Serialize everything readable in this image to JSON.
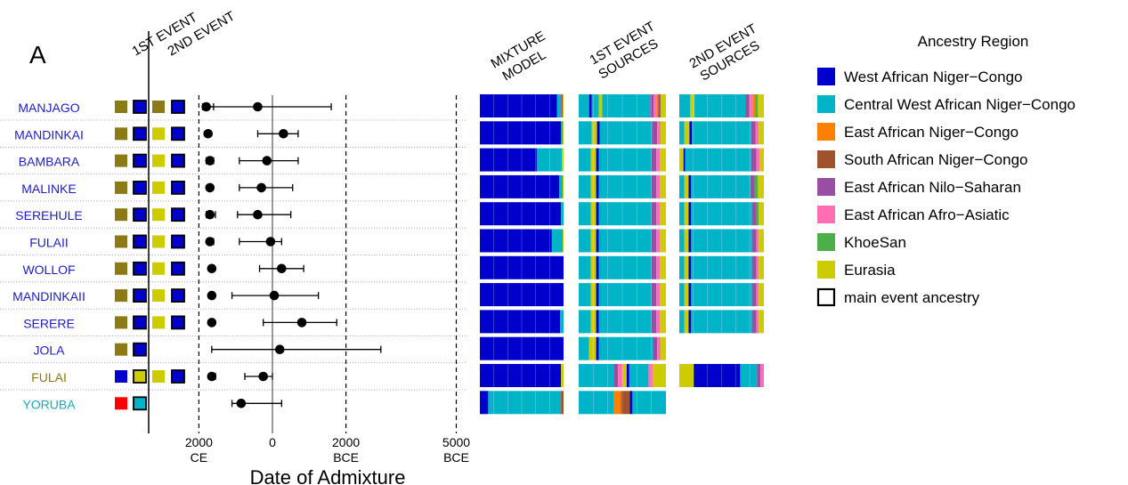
{
  "panel_label": "A",
  "event_headers": [
    "1ST EVENT",
    "2ND EVENT"
  ],
  "bar_headers": [
    [
      "MIXTURE",
      "MODEL"
    ],
    [
      "1ST EVENT",
      "SOURCES"
    ],
    [
      "2ND EVENT",
      "SOURCES"
    ]
  ],
  "legend": {
    "title": "Ancestry Region",
    "items": [
      {
        "label": "West African Niger−Congo",
        "color": "#0000cd"
      },
      {
        "label": "Central West African Niger−Congo",
        "color": "#00b4c8"
      },
      {
        "label": "East African Niger−Congo",
        "color": "#ff8000"
      },
      {
        "label": "South African Niger−Congo",
        "color": "#a0522d"
      },
      {
        "label": "East African Nilo−Saharan",
        "color": "#984ea3"
      },
      {
        "label": "East African Afro−Asiatic",
        "color": "#ff6eb4"
      },
      {
        "label": "KhoeSan",
        "color": "#4daf4a"
      },
      {
        "label": "Eurasia",
        "color": "#cccc00"
      }
    ],
    "outline_item": "main event ancestry"
  },
  "chart_data": {
    "type": "scatter",
    "xlabel": "Date of Admixture",
    "ticks": [
      {
        "value": -2000,
        "line1": "2000",
        "line2": "CE"
      },
      {
        "value": 0,
        "line1": "0",
        "line2": ""
      },
      {
        "value": 2000,
        "line1": "2000",
        "line2": "BCE"
      },
      {
        "value": 5000,
        "line1": "5000",
        "line2": "BCE"
      }
    ],
    "xlim": [
      -2200,
      5300
    ],
    "dashed_at": [
      -2000,
      2000,
      5000
    ],
    "solid_at": [
      0
    ],
    "ancestry_colors": {
      "WA": "#0000cd",
      "CWA": "#00b4c8",
      "EANC": "#ff8000",
      "SANC": "#a0522d",
      "NS": "#984ea3",
      "AA": "#ff6eb4",
      "KS": "#4daf4a",
      "EU": "#cccc00",
      "OLIVE": "#8b7a16",
      "RED": "#ff0000"
    },
    "populations": [
      {
        "name": "MANJAGO",
        "label_color": "#1c1ccc",
        "e1": [
          "OLIVE",
          "WA"
        ],
        "e2": [
          "OLIVE",
          "WA"
        ],
        "main1": 1,
        "main2": 1,
        "d1": {
          "date": -1800,
          "lo": -1900,
          "hi": -1600
        },
        "d2": {
          "date": -400,
          "lo": -1800,
          "hi": 1600
        },
        "mix": [
          [
            "WA",
            0.92
          ],
          [
            "CWA",
            0.05
          ],
          [
            "NS",
            0.02
          ],
          [
            "EU",
            0.01
          ]
        ],
        "s1": [
          [
            "CWA",
            0.12
          ],
          [
            "WA",
            0.03
          ],
          [
            "CWA",
            0.08
          ],
          [
            "EU",
            0.04
          ],
          [
            "CWA",
            0.55
          ],
          [
            "NS",
            0.04
          ],
          [
            "AA",
            0.03
          ],
          [
            "EANC",
            0.02
          ],
          [
            "NS",
            0.03
          ],
          [
            "EU",
            0.06
          ]
        ],
        "s2": [
          [
            "CWA",
            0.13
          ],
          [
            "EU",
            0.05
          ],
          [
            "CWA",
            0.6
          ],
          [
            "NS",
            0.05
          ],
          [
            "AA",
            0.04
          ],
          [
            "EANC",
            0.03
          ],
          [
            "KS",
            0.03
          ],
          [
            "EU",
            0.07
          ]
        ]
      },
      {
        "name": "MANDINKAI",
        "label_color": "#1c1ccc",
        "e1": [
          "OLIVE",
          "WA"
        ],
        "e2": [
          "EU",
          "WA"
        ],
        "main1": 1,
        "main2": 1,
        "d1": {
          "date": -1750,
          "lo": -1750,
          "hi": -1750
        },
        "d2": {
          "date": 300,
          "lo": -400,
          "hi": 700
        },
        "mix": [
          [
            "WA",
            0.97
          ],
          [
            "CWA",
            0.02
          ],
          [
            "EU",
            0.01
          ]
        ],
        "s1": [
          [
            "CWA",
            0.15
          ],
          [
            "EU",
            0.06
          ],
          [
            "WA",
            0.03
          ],
          [
            "CWA",
            0.6
          ],
          [
            "NS",
            0.06
          ],
          [
            "AA",
            0.04
          ],
          [
            "EU",
            0.06
          ]
        ],
        "s2": [
          [
            "CWA",
            0.06
          ],
          [
            "EU",
            0.06
          ],
          [
            "WA",
            0.03
          ],
          [
            "CWA",
            0.7
          ],
          [
            "NS",
            0.05
          ],
          [
            "AA",
            0.04
          ],
          [
            "EU",
            0.06
          ]
        ]
      },
      {
        "name": "BAMBARA",
        "label_color": "#1c1ccc",
        "e1": [
          "OLIVE",
          "WA"
        ],
        "e2": [
          "EU",
          "WA"
        ],
        "main1": 1,
        "main2": 1,
        "d1": {
          "date": -1700,
          "lo": -1800,
          "hi": -1600
        },
        "d2": {
          "date": -150,
          "lo": -900,
          "hi": 700
        },
        "mix": [
          [
            "WA",
            0.68
          ],
          [
            "CWA",
            0.3
          ],
          [
            "EU",
            0.02
          ]
        ],
        "s1": [
          [
            "CWA",
            0.14
          ],
          [
            "EU",
            0.06
          ],
          [
            "WA",
            0.03
          ],
          [
            "CWA",
            0.6
          ],
          [
            "NS",
            0.06
          ],
          [
            "AA",
            0.04
          ],
          [
            "EU",
            0.07
          ]
        ],
        "s2": [
          [
            "EU",
            0.05
          ],
          [
            "WA",
            0.02
          ],
          [
            "CWA",
            0.78
          ],
          [
            "NS",
            0.06
          ],
          [
            "AA",
            0.04
          ],
          [
            "EU",
            0.05
          ]
        ]
      },
      {
        "name": "MALINKE",
        "label_color": "#1c1ccc",
        "e1": [
          "OLIVE",
          "WA"
        ],
        "e2": [
          "EU",
          "WA"
        ],
        "main1": 1,
        "main2": 1,
        "d1": {
          "date": -1700,
          "lo": -1700,
          "hi": -1700
        },
        "d2": {
          "date": -300,
          "lo": -900,
          "hi": 550
        },
        "mix": [
          [
            "WA",
            0.95
          ],
          [
            "CWA",
            0.04
          ],
          [
            "EU",
            0.01
          ]
        ],
        "s1": [
          [
            "CWA",
            0.14
          ],
          [
            "EU",
            0.06
          ],
          [
            "WA",
            0.03
          ],
          [
            "CWA",
            0.6
          ],
          [
            "NS",
            0.06
          ],
          [
            "AA",
            0.04
          ],
          [
            "EU",
            0.07
          ]
        ],
        "s2": [
          [
            "CWA",
            0.06
          ],
          [
            "EU",
            0.05
          ],
          [
            "WA",
            0.03
          ],
          [
            "CWA",
            0.7
          ],
          [
            "NS",
            0.05
          ],
          [
            "KS",
            0.04
          ],
          [
            "EU",
            0.07
          ]
        ]
      },
      {
        "name": "SEREHULE",
        "label_color": "#1c1ccc",
        "e1": [
          "OLIVE",
          "WA"
        ],
        "e2": [
          "EU",
          "WA"
        ],
        "main1": 1,
        "main2": 1,
        "d1": {
          "date": -1700,
          "lo": -1800,
          "hi": -1550
        },
        "d2": {
          "date": -400,
          "lo": -950,
          "hi": 500
        },
        "mix": [
          [
            "WA",
            0.97
          ],
          [
            "CWA",
            0.03
          ]
        ],
        "s1": [
          [
            "CWA",
            0.14
          ],
          [
            "EU",
            0.06
          ],
          [
            "WA",
            0.03
          ],
          [
            "CWA",
            0.6
          ],
          [
            "NS",
            0.06
          ],
          [
            "AA",
            0.04
          ],
          [
            "EU",
            0.07
          ]
        ],
        "s2": [
          [
            "CWA",
            0.06
          ],
          [
            "EU",
            0.05
          ],
          [
            "WA",
            0.03
          ],
          [
            "CWA",
            0.72
          ],
          [
            "NS",
            0.05
          ],
          [
            "KS",
            0.03
          ],
          [
            "EU",
            0.06
          ]
        ]
      },
      {
        "name": "FULAII",
        "label_color": "#1c1ccc",
        "e1": [
          "OLIVE",
          "WA"
        ],
        "e2": [
          "EU",
          "WA"
        ],
        "main1": 1,
        "main2": 1,
        "d1": {
          "date": -1700,
          "lo": -1750,
          "hi": -1600
        },
        "d2": {
          "date": -50,
          "lo": -900,
          "hi": 250
        },
        "mix": [
          [
            "WA",
            0.86
          ],
          [
            "CWA",
            0.13
          ],
          [
            "EU",
            0.01
          ]
        ],
        "s1": [
          [
            "CWA",
            0.14
          ],
          [
            "EU",
            0.06
          ],
          [
            "WA",
            0.03
          ],
          [
            "CWA",
            0.6
          ],
          [
            "NS",
            0.06
          ],
          [
            "AA",
            0.04
          ],
          [
            "EU",
            0.07
          ]
        ],
        "s2": [
          [
            "CWA",
            0.06
          ],
          [
            "EU",
            0.05
          ],
          [
            "WA",
            0.03
          ],
          [
            "CWA",
            0.72
          ],
          [
            "NS",
            0.05
          ],
          [
            "AA",
            0.03
          ],
          [
            "EU",
            0.06
          ]
        ]
      },
      {
        "name": "WOLLOF",
        "label_color": "#1c1ccc",
        "e1": [
          "OLIVE",
          "WA"
        ],
        "e2": [
          "EU",
          "WA"
        ],
        "main1": 1,
        "main2": 1,
        "d1": {
          "date": -1650,
          "lo": -1650,
          "hi": -1650
        },
        "d2": {
          "date": 250,
          "lo": -350,
          "hi": 850
        },
        "mix": [
          [
            "WA",
            1.0
          ]
        ],
        "s1": [
          [
            "CWA",
            0.14
          ],
          [
            "EU",
            0.06
          ],
          [
            "WA",
            0.03
          ],
          [
            "CWA",
            0.6
          ],
          [
            "NS",
            0.06
          ],
          [
            "AA",
            0.04
          ],
          [
            "EU",
            0.07
          ]
        ],
        "s2": [
          [
            "CWA",
            0.06
          ],
          [
            "EU",
            0.05
          ],
          [
            "WA",
            0.03
          ],
          [
            "CWA",
            0.72
          ],
          [
            "NS",
            0.05
          ],
          [
            "AA",
            0.03
          ],
          [
            "EU",
            0.06
          ]
        ]
      },
      {
        "name": "MANDINKAII",
        "label_color": "#1c1ccc",
        "e1": [
          "OLIVE",
          "WA"
        ],
        "e2": [
          "EU",
          "WA"
        ],
        "main1": 1,
        "main2": 1,
        "d1": {
          "date": -1650,
          "lo": -1700,
          "hi": -1600
        },
        "d2": {
          "date": 50,
          "lo": -1100,
          "hi": 1250
        },
        "mix": [
          [
            "WA",
            1.0
          ]
        ],
        "s1": [
          [
            "CWA",
            0.14
          ],
          [
            "EU",
            0.06
          ],
          [
            "WA",
            0.03
          ],
          [
            "CWA",
            0.6
          ],
          [
            "NS",
            0.06
          ],
          [
            "AA",
            0.04
          ],
          [
            "EU",
            0.07
          ]
        ],
        "s2": [
          [
            "CWA",
            0.06
          ],
          [
            "EU",
            0.05
          ],
          [
            "WA",
            0.03
          ],
          [
            "CWA",
            0.72
          ],
          [
            "NS",
            0.05
          ],
          [
            "AA",
            0.03
          ],
          [
            "EU",
            0.06
          ]
        ]
      },
      {
        "name": "SERERE",
        "label_color": "#1c1ccc",
        "e1": [
          "OLIVE",
          "WA"
        ],
        "e2": [
          "EU",
          "WA"
        ],
        "main1": 1,
        "main2": 1,
        "d1": {
          "date": -1650,
          "lo": -1700,
          "hi": -1600
        },
        "d2": {
          "date": 800,
          "lo": -250,
          "hi": 1750
        },
        "mix": [
          [
            "WA",
            0.96
          ],
          [
            "CWA",
            0.04
          ]
        ],
        "s1": [
          [
            "CWA",
            0.14
          ],
          [
            "EU",
            0.06
          ],
          [
            "WA",
            0.03
          ],
          [
            "CWA",
            0.6
          ],
          [
            "NS",
            0.06
          ],
          [
            "AA",
            0.04
          ],
          [
            "EU",
            0.07
          ]
        ],
        "s2": [
          [
            "CWA",
            0.06
          ],
          [
            "EU",
            0.05
          ],
          [
            "WA",
            0.03
          ],
          [
            "CWA",
            0.72
          ],
          [
            "NS",
            0.05
          ],
          [
            "AA",
            0.03
          ],
          [
            "EU",
            0.06
          ]
        ]
      },
      {
        "name": "JOLA",
        "label_color": "#1c1ccc",
        "e1": [
          "OLIVE",
          "WA"
        ],
        "e2": null,
        "main1": 1,
        "main2": null,
        "d1": {
          "date": 200,
          "lo": -1650,
          "hi": 2950
        },
        "d2": null,
        "mix": [
          [
            "WA",
            1.0
          ]
        ],
        "s1": [
          [
            "CWA",
            0.12
          ],
          [
            "EU",
            0.08
          ],
          [
            "WA",
            0.03
          ],
          [
            "CWA",
            0.62
          ],
          [
            "NS",
            0.05
          ],
          [
            "AA",
            0.04
          ],
          [
            "EU",
            0.06
          ]
        ],
        "s2": null
      },
      {
        "name": "FULAI",
        "label_color": "#8b7a16",
        "e1": [
          "WA",
          "EU"
        ],
        "e2": [
          "EU",
          "WA"
        ],
        "main1": 1,
        "main2": 1,
        "d1": {
          "date": -1650,
          "lo": -1700,
          "hi": -1550
        },
        "d2": {
          "date": -250,
          "lo": -750,
          "hi": 0
        },
        "mix": [
          [
            "WA",
            0.97
          ],
          [
            "EU",
            0.03
          ]
        ],
        "s1": [
          [
            "CWA",
            0.4
          ],
          [
            "NS",
            0.05
          ],
          [
            "AA",
            0.05
          ],
          [
            "EU",
            0.05
          ],
          [
            "WA",
            0.03
          ],
          [
            "CWA",
            0.22
          ],
          [
            "AA",
            0.05
          ],
          [
            "EU",
            0.15
          ]
        ],
        "s2": [
          [
            "EU",
            0.17
          ],
          [
            "WA",
            0.55
          ],
          [
            "CWA",
            0.2
          ],
          [
            "NS",
            0.04
          ],
          [
            "AA",
            0.04
          ]
        ]
      },
      {
        "name": "YORUBA",
        "label_color": "#1aa8c0",
        "e1": [
          "RED",
          "CWA"
        ],
        "e2": null,
        "main1": 1,
        "main2": null,
        "d1": {
          "date": -850,
          "lo": -1100,
          "hi": 250
        },
        "d2": null,
        "mix": [
          [
            "WA",
            0.1
          ],
          [
            "CWA",
            0.87
          ],
          [
            "SANC",
            0.03
          ]
        ],
        "s1": [
          [
            "CWA",
            0.4
          ],
          [
            "EANC",
            0.08
          ],
          [
            "SANC",
            0.1
          ],
          [
            "WA",
            0.03
          ],
          [
            "CWA",
            0.38
          ]
        ],
        "s2": null
      }
    ]
  }
}
